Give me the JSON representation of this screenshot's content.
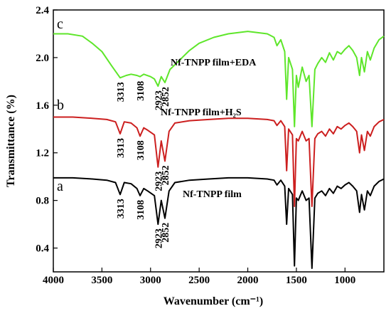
{
  "chart_data": {
    "type": "line",
    "xlabel": "Wavenumber (cm⁻¹)",
    "ylabel": "Transmittance (%)",
    "xlim": [
      4000,
      600
    ],
    "ylim": [
      0.2,
      2.4
    ],
    "xticks": [
      4000,
      3500,
      3000,
      2500,
      2000,
      1500,
      1000
    ],
    "yticks": [
      0.4,
      0.8,
      1.2,
      1.6,
      {
        "value": 2,
        "label": "2.0"
      },
      2.4
    ],
    "series": [
      {
        "name": "a",
        "label": "Nf-TNPP film",
        "color": "#000000",
        "x": [
          4000,
          3800,
          3600,
          3450,
          3360,
          3313,
          3270,
          3200,
          3140,
          3108,
          3070,
          3030,
          2960,
          2923,
          2890,
          2852,
          2810,
          2750,
          2600,
          2400,
          2200,
          2000,
          1800,
          1730,
          1700,
          1660,
          1620,
          1600,
          1580,
          1540,
          1520,
          1500,
          1480,
          1440,
          1400,
          1370,
          1340,
          1310,
          1280,
          1240,
          1200,
          1160,
          1120,
          1080,
          1040,
          1000,
          960,
          920,
          880,
          850,
          830,
          800,
          770,
          740,
          700,
          650,
          600
        ],
        "values": [
          0.99,
          0.99,
          0.98,
          0.97,
          0.95,
          0.85,
          0.95,
          0.94,
          0.9,
          0.84,
          0.9,
          0.88,
          0.84,
          0.6,
          0.8,
          0.65,
          0.88,
          0.95,
          0.97,
          0.98,
          0.99,
          0.99,
          0.98,
          0.97,
          0.93,
          0.97,
          0.92,
          0.6,
          0.9,
          0.85,
          0.25,
          0.82,
          0.8,
          0.88,
          0.8,
          0.82,
          0.23,
          0.82,
          0.86,
          0.88,
          0.84,
          0.9,
          0.86,
          0.92,
          0.9,
          0.93,
          0.95,
          0.92,
          0.88,
          0.7,
          0.85,
          0.72,
          0.88,
          0.84,
          0.92,
          0.96,
          0.98
        ],
        "peaks": [
          3313,
          3108,
          2923,
          2852
        ]
      },
      {
        "name": "b",
        "label": "Nf-TNPP film+H₂S",
        "color": "#cc1f1f",
        "x": [
          4000,
          3800,
          3600,
          3450,
          3360,
          3313,
          3270,
          3200,
          3140,
          3108,
          3070,
          3030,
          2960,
          2923,
          2890,
          2852,
          2810,
          2750,
          2600,
          2400,
          2200,
          2000,
          1800,
          1730,
          1700,
          1660,
          1620,
          1600,
          1580,
          1540,
          1520,
          1500,
          1480,
          1440,
          1400,
          1370,
          1340,
          1310,
          1280,
          1240,
          1200,
          1160,
          1120,
          1080,
          1040,
          1000,
          960,
          920,
          880,
          850,
          830,
          800,
          770,
          740,
          700,
          650,
          600
        ],
        "values": [
          1.5,
          1.5,
          1.49,
          1.48,
          1.46,
          1.36,
          1.46,
          1.45,
          1.41,
          1.34,
          1.41,
          1.39,
          1.35,
          1.08,
          1.3,
          1.13,
          1.38,
          1.45,
          1.47,
          1.48,
          1.49,
          1.49,
          1.48,
          1.47,
          1.43,
          1.47,
          1.42,
          1.05,
          1.4,
          1.35,
          0.75,
          1.32,
          1.3,
          1.38,
          1.3,
          1.32,
          0.75,
          1.32,
          1.36,
          1.38,
          1.34,
          1.4,
          1.36,
          1.42,
          1.4,
          1.43,
          1.45,
          1.42,
          1.38,
          1.2,
          1.35,
          1.22,
          1.38,
          1.34,
          1.42,
          1.46,
          1.48
        ],
        "peaks": [
          3313,
          3108,
          2923,
          2852
        ]
      },
      {
        "name": "c",
        "label": "Nf-TNPP film+EDA",
        "color": "#5ee62a",
        "x": [
          4000,
          3850,
          3700,
          3600,
          3500,
          3400,
          3313,
          3250,
          3200,
          3140,
          3108,
          3070,
          3000,
          2960,
          2923,
          2890,
          2852,
          2800,
          2700,
          2600,
          2500,
          2350,
          2200,
          2000,
          1800,
          1730,
          1700,
          1660,
          1620,
          1600,
          1580,
          1540,
          1520,
          1500,
          1480,
          1440,
          1400,
          1370,
          1340,
          1310,
          1280,
          1240,
          1200,
          1160,
          1120,
          1080,
          1040,
          1000,
          960,
          920,
          880,
          850,
          830,
          800,
          770,
          740,
          700,
          650,
          600
        ],
        "values": [
          2.2,
          2.2,
          2.18,
          2.12,
          2.05,
          1.93,
          1.83,
          1.85,
          1.86,
          1.85,
          1.84,
          1.86,
          1.84,
          1.82,
          1.76,
          1.84,
          1.79,
          1.9,
          1.98,
          2.06,
          2.12,
          2.17,
          2.2,
          2.22,
          2.2,
          2.17,
          2.1,
          2.15,
          2.05,
          1.65,
          2.0,
          1.9,
          1.42,
          1.85,
          1.75,
          1.92,
          1.8,
          1.85,
          1.42,
          1.9,
          1.95,
          2.0,
          1.96,
          2.04,
          1.98,
          2.05,
          2.03,
          2.07,
          2.1,
          2.06,
          2.0,
          1.85,
          2.0,
          1.88,
          2.05,
          1.98,
          2.08,
          2.15,
          2.18
        ],
        "peaks": [
          3313,
          3108,
          2923,
          2852
        ]
      }
    ]
  }
}
